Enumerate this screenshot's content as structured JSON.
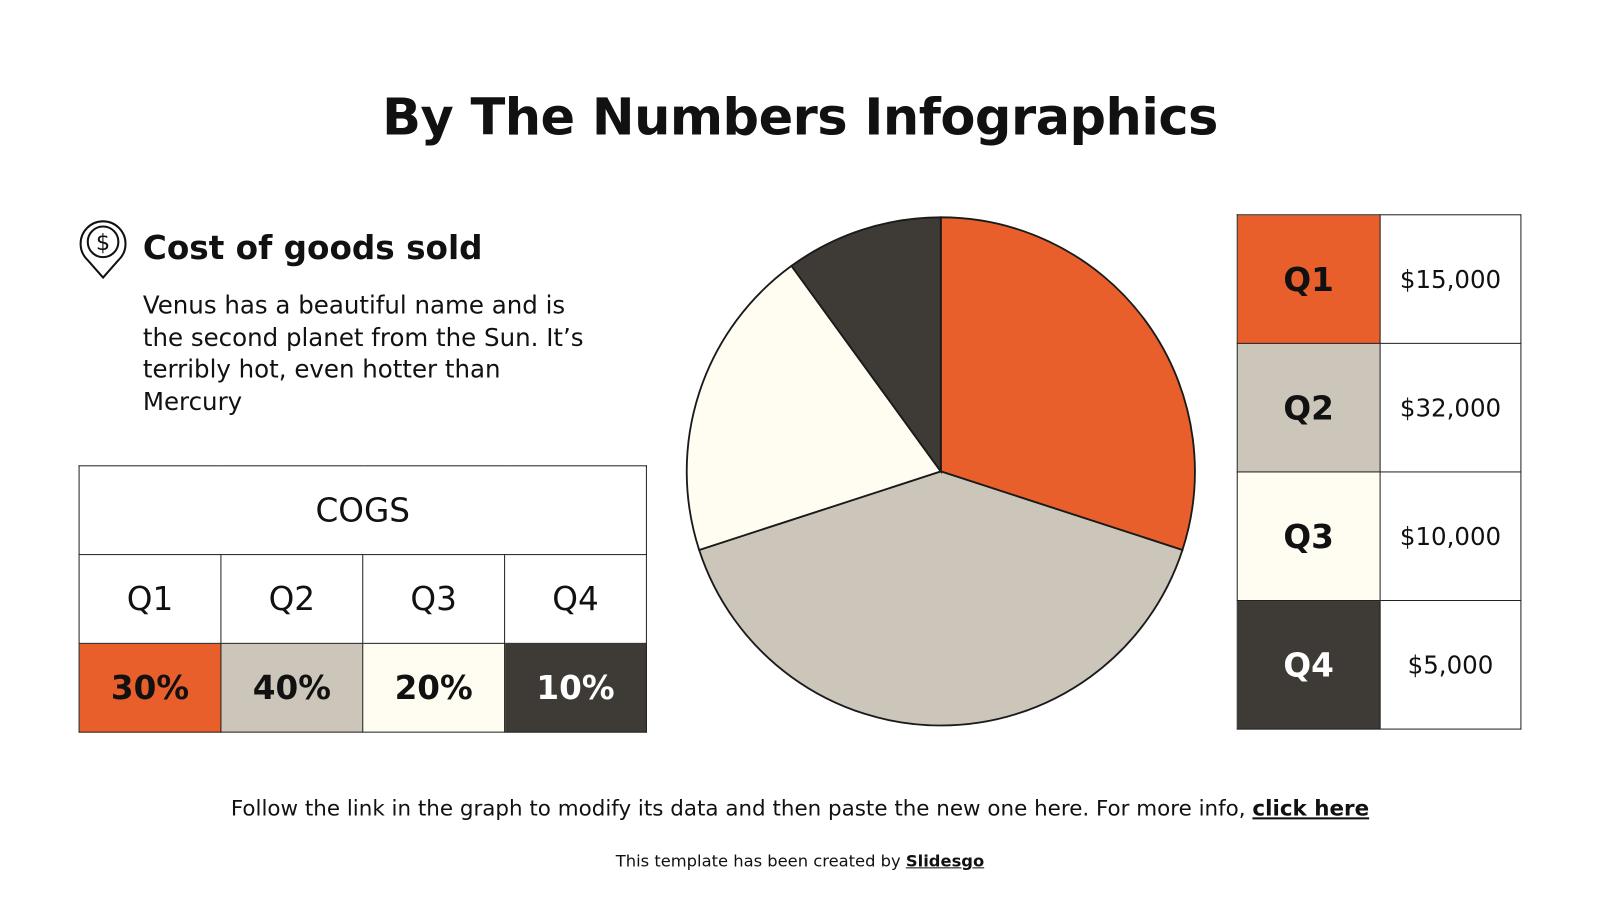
{
  "title": "By The Numbers Infographics",
  "section": {
    "icon": "dollar-location-pin-icon",
    "heading": "Cost of goods sold",
    "description": "Venus has a beautiful name and is the second planet from the Sun. It’s terribly hot, even hotter than Mercury"
  },
  "cogs_table": {
    "header": "COGS",
    "quarters": [
      "Q1",
      "Q2",
      "Q3",
      "Q4"
    ],
    "percents": [
      "30%",
      "40%",
      "20%",
      "10%"
    ]
  },
  "value_table": {
    "rows": [
      {
        "label": "Q1",
        "value": "$15,000"
      },
      {
        "label": "Q2",
        "value": "$32,000"
      },
      {
        "label": "Q3",
        "value": "$10,000"
      },
      {
        "label": "Q4",
        "value": "$5,000"
      }
    ]
  },
  "colors": {
    "Q1": "#E95F2B",
    "Q2": "#CCC6BA",
    "Q3": "#FFFCF2",
    "Q4": "#3E3B37"
  },
  "chart_data": {
    "type": "pie",
    "categories": [
      "Q1",
      "Q2",
      "Q3",
      "Q4"
    ],
    "values": [
      30,
      40,
      20,
      10
    ],
    "start": "top",
    "direction": "clockwise",
    "colors": [
      "#E95F2B",
      "#CCC6BA",
      "#FFFCF2",
      "#3E3B37"
    ]
  },
  "footer": {
    "note": "Follow the link in the graph to modify its data and then paste the new one here. For more info, ",
    "link": "click here",
    "credit": "This template has been created by ",
    "credit_link": "Slidesgo"
  }
}
